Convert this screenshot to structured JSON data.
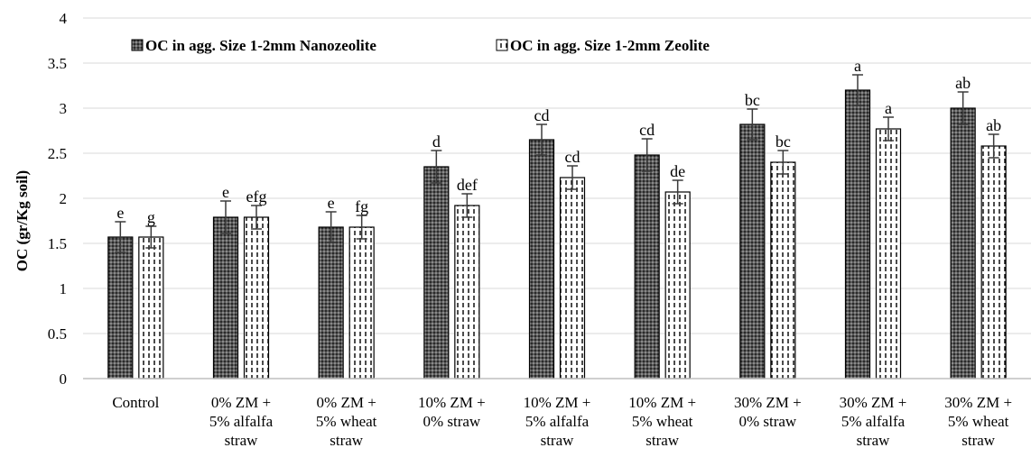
{
  "chart_data": {
    "type": "bar",
    "ylabel": "OC (gr/Kg soil)",
    "ylim": [
      0,
      4
    ],
    "yticks": [
      "0",
      "0.5",
      "1",
      "1.5",
      "2",
      "2.5",
      "3",
      "3.5",
      "4"
    ],
    "grid": true,
    "legend_position": "top-left",
    "categories": [
      [
        "Control"
      ],
      [
        "0% ZM +",
        "5% alfalfa",
        "straw"
      ],
      [
        "0% ZM +",
        "5% wheat",
        "straw"
      ],
      [
        "10% ZM +",
        "0% straw"
      ],
      [
        "10% ZM +",
        "5% alfalfa",
        "straw"
      ],
      [
        "10% ZM +",
        "5% wheat",
        "straw"
      ],
      [
        "30% ZM +",
        "0% straw"
      ],
      [
        "30% ZM +",
        "5% alfalfa",
        "straw"
      ],
      [
        "30% ZM +",
        "5% wheat",
        "straw"
      ]
    ],
    "series": [
      {
        "name": "OC in agg. Size 1-2mm Nanozeolite",
        "values": [
          1.57,
          1.79,
          1.68,
          2.35,
          2.65,
          2.48,
          2.82,
          3.2,
          3.0
        ],
        "errors": [
          0.17,
          0.18,
          0.17,
          0.18,
          0.17,
          0.18,
          0.17,
          0.17,
          0.18
        ],
        "labels": [
          "e",
          "e",
          "e",
          "d",
          "cd",
          "cd",
          "bc",
          "a",
          "ab"
        ],
        "color": "#444444",
        "pattern": "dots-dark"
      },
      {
        "name": "OC in agg. Size 1-2mm Zeolite",
        "values": [
          1.57,
          1.79,
          1.68,
          1.92,
          2.23,
          2.07,
          2.4,
          2.77,
          2.58
        ],
        "errors": [
          0.12,
          0.13,
          0.13,
          0.13,
          0.13,
          0.13,
          0.13,
          0.13,
          0.13
        ],
        "labels": [
          "g",
          "efg",
          "fg",
          "def",
          "cd",
          "de",
          "bc",
          "a",
          "ab"
        ],
        "color": "#ffffff",
        "pattern": "dashes-light"
      }
    ]
  }
}
